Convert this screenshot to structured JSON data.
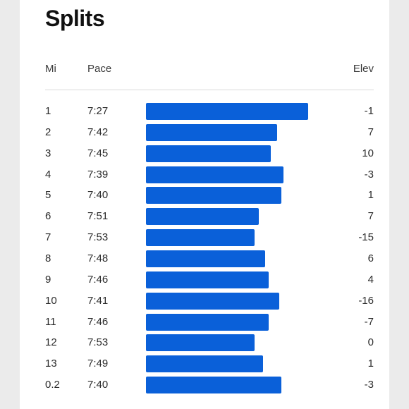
{
  "title": "Splits",
  "headers": {
    "mile": "Mi",
    "pace": "Pace",
    "elev": "Elev"
  },
  "colors": {
    "bar": "#0a60d9",
    "background": "#ffffff"
  },
  "splits": [
    {
      "mile": "1",
      "pace": "7:27",
      "elev": "-1"
    },
    {
      "mile": "2",
      "pace": "7:42",
      "elev": "7"
    },
    {
      "mile": "3",
      "pace": "7:45",
      "elev": "10"
    },
    {
      "mile": "4",
      "pace": "7:39",
      "elev": "-3"
    },
    {
      "mile": "5",
      "pace": "7:40",
      "elev": "1"
    },
    {
      "mile": "6",
      "pace": "7:51",
      "elev": "7"
    },
    {
      "mile": "7",
      "pace": "7:53",
      "elev": "-15"
    },
    {
      "mile": "8",
      "pace": "7:48",
      "elev": "6"
    },
    {
      "mile": "9",
      "pace": "7:46",
      "elev": "4"
    },
    {
      "mile": "10",
      "pace": "7:41",
      "elev": "-16"
    },
    {
      "mile": "11",
      "pace": "7:46",
      "elev": "-7"
    },
    {
      "mile": "12",
      "pace": "7:53",
      "elev": "0"
    },
    {
      "mile": "13",
      "pace": "7:49",
      "elev": "1"
    },
    {
      "mile": "0.2",
      "pace": "7:40",
      "elev": "-3"
    }
  ]
}
